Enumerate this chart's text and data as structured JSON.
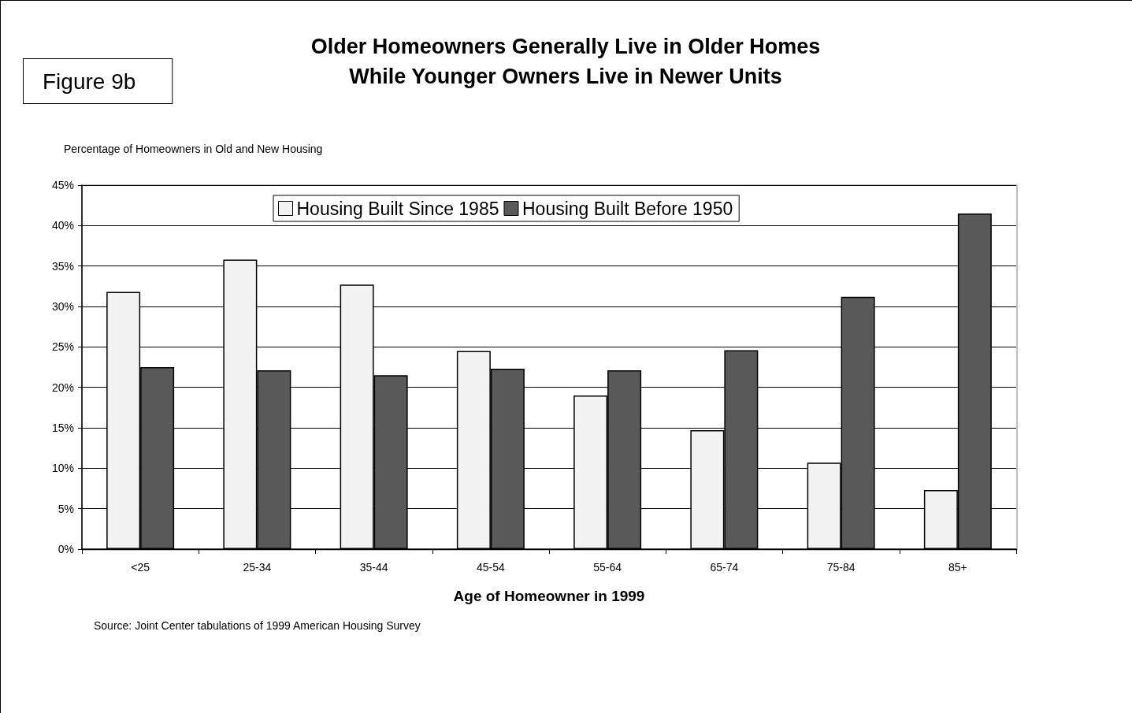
{
  "chart_data": {
    "type": "bar",
    "title": "Older Homeowners Generally Live in Older Homes\nWhile Younger Owners Live in Newer Units",
    "ylabel": "Percentage of Homeowners in Old and New Housing",
    "xlabel": "Age of Homeowner in 1999",
    "annotations": [
      "Figure 9b",
      "Source: Joint Center tabulations of 1999 American Housing Survey"
    ],
    "categories": [
      "<25",
      "25-34",
      "35-44",
      "45-54",
      "55-64",
      "65-74",
      "75-84",
      "85+"
    ],
    "series": [
      {
        "name": "Housing Built Since 1985",
        "color": "#f2f2f2",
        "values": [
          31.8,
          35.8,
          32.7,
          24.5,
          19.0,
          14.7,
          10.7,
          7.3
        ]
      },
      {
        "name": "Housing Built Before 1950",
        "color": "#595959",
        "values": [
          22.5,
          22.1,
          21.5,
          22.3,
          22.1,
          24.6,
          31.2,
          41.5
        ]
      }
    ],
    "ylim": [
      0,
      45
    ],
    "yticks": [
      {
        "value": 0,
        "label": "0%"
      },
      {
        "value": 5,
        "label": "5%"
      },
      {
        "value": 10,
        "label": "10%"
      },
      {
        "value": 15,
        "label": "15%"
      },
      {
        "value": 20,
        "label": "20%"
      },
      {
        "value": 25,
        "label": "25%"
      },
      {
        "value": 30,
        "label": "30%"
      },
      {
        "value": 35,
        "label": "35%"
      },
      {
        "value": 40,
        "label": "40%"
      },
      {
        "value": 45,
        "label": "45%"
      }
    ],
    "grid": "y",
    "legend": "top"
  }
}
